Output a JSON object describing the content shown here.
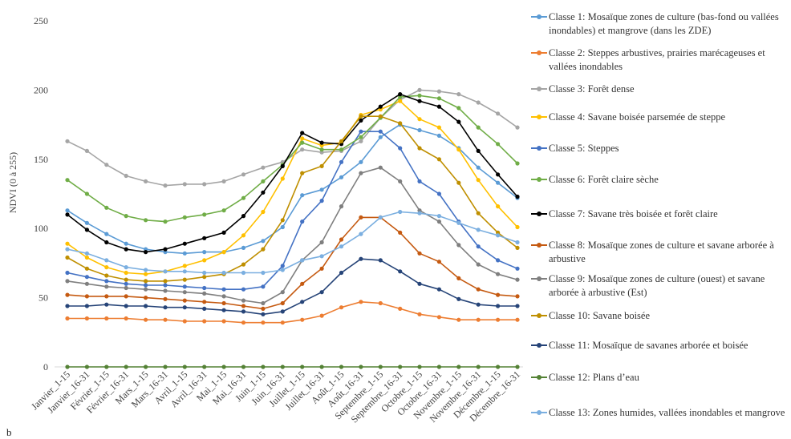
{
  "chart_data": {
    "type": "line",
    "title": "",
    "xlabel": "",
    "ylabel": "NDVI (0 à 255)",
    "panel_label": "b",
    "ylim": [
      0,
      250
    ],
    "yticks": [
      0,
      50,
      100,
      150,
      200,
      250
    ],
    "grid": false,
    "legend_position": "right",
    "categories": [
      "Janvier_1-15",
      "Janvier_16-31",
      "Février_1-15",
      "Février_16-31",
      "Mars_1-15",
      "Mars_16-31",
      "Avril_1-15",
      "Avril_16-31",
      "Mai_1-15",
      "Mai_16-31",
      "Juin_1-15",
      "Juin_16-31",
      "Juillet_1-15",
      "Juillet_16-31",
      "Août_1-15",
      "Août_16-31",
      "Septembre_1-15",
      "Septembre_16-31",
      "Octobre_1-15",
      "Octobre_16-31",
      "Novembre_1-15",
      "Novembre_16-31",
      "Décembre_1-15",
      "Décembre_16-31"
    ],
    "series": [
      {
        "name": "Classe 1: Mosaïque zones de culture (bas-fond ou vallées inondables) et mangrove (dans les ZDE)",
        "color": "#5b9bd5",
        "values": [
          113,
          104,
          96,
          89,
          85,
          83,
          82,
          83,
          83,
          86,
          91,
          101,
          124,
          128,
          137,
          148,
          166,
          175,
          171,
          167,
          158,
          144,
          133,
          122
        ]
      },
      {
        "name": "Classe 2: Steppes arbustives, prairies marécageuses et vallées inondables",
        "color": "#ed7d31",
        "values": [
          35,
          35,
          35,
          35,
          34,
          34,
          33,
          33,
          33,
          32,
          32,
          32,
          34,
          37,
          43,
          47,
          46,
          42,
          38,
          36,
          34,
          34,
          34,
          34
        ]
      },
      {
        "name": "Classe 3: Forêt dense",
        "color": "#a5a5a5",
        "values": [
          163,
          156,
          146,
          138,
          134,
          131,
          132,
          132,
          134,
          139,
          144,
          148,
          157,
          155,
          156,
          163,
          180,
          193,
          200,
          199,
          197,
          191,
          183,
          173
        ]
      },
      {
        "name": "Classe 4: Savane boisée parsemée de steppe",
        "color": "#ffc000",
        "values": [
          89,
          79,
          72,
          68,
          67,
          69,
          73,
          77,
          83,
          95,
          112,
          136,
          165,
          160,
          162,
          182,
          186,
          192,
          179,
          173,
          157,
          135,
          116,
          101
        ]
      },
      {
        "name": "Classe 5: Steppes",
        "color": "#4472c4",
        "values": [
          68,
          65,
          62,
          60,
          59,
          59,
          58,
          57,
          56,
          56,
          58,
          73,
          105,
          120,
          148,
          170,
          170,
          158,
          134,
          125,
          105,
          87,
          77,
          71
        ]
      },
      {
        "name": "Classe 6: Forêt claire sèche",
        "color": "#70ad47",
        "values": [
          135,
          125,
          115,
          109,
          106,
          105,
          108,
          110,
          113,
          122,
          134,
          146,
          162,
          157,
          157,
          166,
          180,
          195,
          196,
          194,
          187,
          173,
          161,
          147
        ]
      },
      {
        "name": "Classe 7: Savane très boisée et forêt claire",
        "color": "#000000",
        "values": [
          110,
          99,
          90,
          85,
          83,
          85,
          89,
          93,
          97,
          109,
          126,
          145,
          169,
          162,
          161,
          178,
          188,
          197,
          192,
          188,
          177,
          156,
          139,
          123
        ]
      },
      {
        "name": "Classe 8: Mosaïque zones de culture et savane arborée à arbustive",
        "color": "#c55a11",
        "values": [
          52,
          51,
          51,
          51,
          50,
          49,
          48,
          47,
          46,
          44,
          42,
          46,
          60,
          71,
          92,
          108,
          108,
          97,
          82,
          76,
          64,
          56,
          52,
          51
        ]
      },
      {
        "name": "Classe 9: Mosaïque zones de culture (ouest) et savane arborée à arbustive (Est)",
        "color": "#7f7f7f",
        "values": [
          62,
          60,
          58,
          57,
          56,
          55,
          54,
          53,
          51,
          48,
          46,
          54,
          77,
          90,
          116,
          140,
          144,
          134,
          113,
          105,
          88,
          74,
          67,
          63
        ]
      },
      {
        "name": "Classe 10: Savane boisée",
        "color": "#bf8f00",
        "values": [
          79,
          71,
          66,
          63,
          62,
          62,
          63,
          65,
          67,
          74,
          85,
          106,
          140,
          145,
          163,
          181,
          181,
          176,
          158,
          150,
          133,
          111,
          97,
          86
        ]
      },
      {
        "name": "Classe 11: Mosaïque de savanes arborée et boisée",
        "color": "#264478",
        "values": [
          44,
          44,
          45,
          44,
          44,
          43,
          43,
          42,
          41,
          40,
          38,
          40,
          47,
          54,
          68,
          78,
          77,
          69,
          60,
          56,
          49,
          45,
          44,
          44
        ]
      },
      {
        "name": "Classe 12: Plans d’eau",
        "color": "#548235",
        "values": [
          0,
          0,
          0,
          0,
          0,
          0,
          0,
          0,
          0,
          0,
          0,
          0,
          0,
          0,
          0,
          0,
          0,
          0,
          0,
          0,
          0,
          0,
          0,
          0
        ]
      },
      {
        "name": "Classe 13: Zones humides, vallées inondables et mangrove",
        "color": "#7bafe0",
        "values": [
          85,
          82,
          77,
          72,
          70,
          69,
          69,
          68,
          68,
          68,
          68,
          70,
          77,
          80,
          87,
          96,
          108,
          112,
          111,
          109,
          104,
          99,
          95,
          90
        ]
      }
    ]
  }
}
